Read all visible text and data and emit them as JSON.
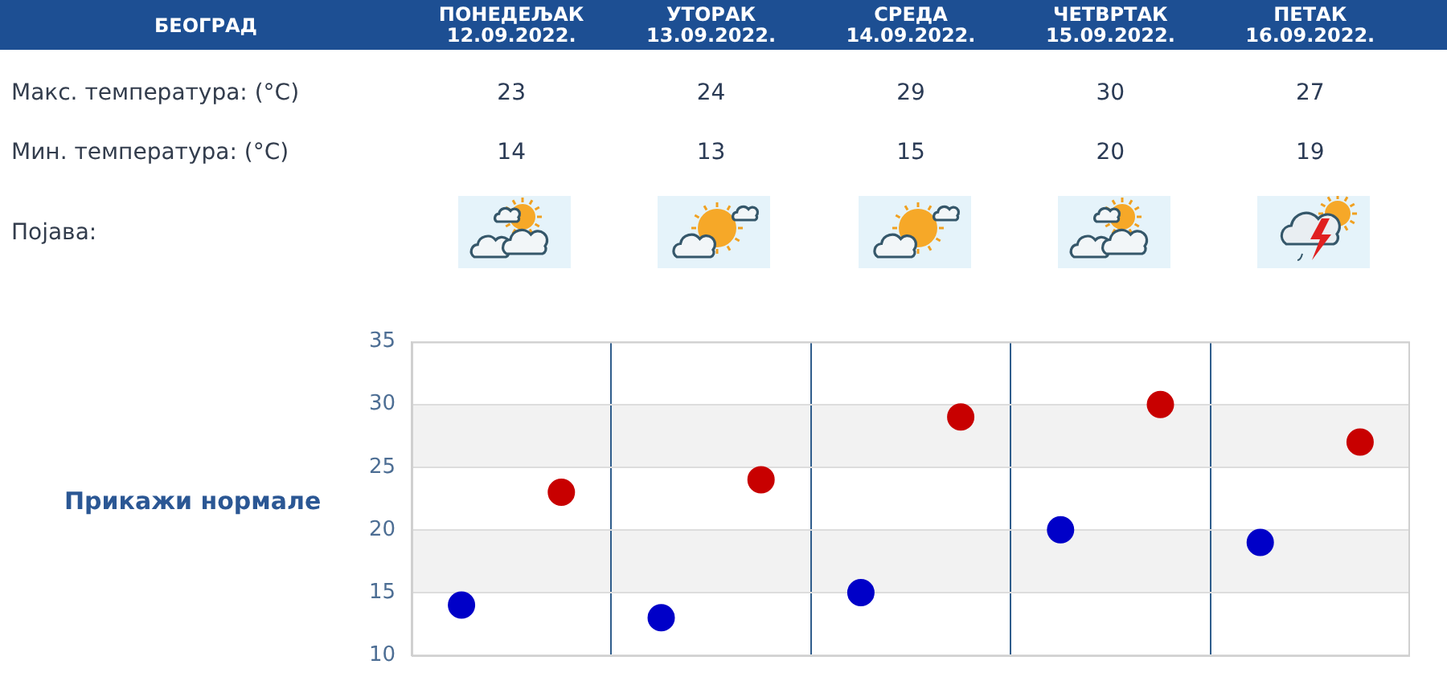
{
  "chart_data": {
    "type": "scatter",
    "title": "БЕОГРАД",
    "categories": [
      null,
      null,
      null,
      null,
      null
    ],
    "series": [
      {
        "color": "#c80000",
        "values": [
          23,
          24,
          29,
          30,
          27
        ]
      },
      {
        "color": "#0000c8",
        "values": [
          14,
          13,
          15,
          20,
          19
        ]
      }
    ],
    "ylim": [
      10,
      35
    ],
    "yticks": [
      10,
      15,
      20,
      25,
      30,
      35
    ],
    "grid": true,
    "legend": false,
    "marker": "circle",
    "data_labels": true,
    "tick_labels": "y",
    "bands": [
      {
        "axis": "y",
        "from": 15,
        "to": 20,
        "color": "#f2f2f2"
      },
      {
        "axis": "y",
        "from": 25,
        "to": 30,
        "color": "#f2f2f2"
      }
    ],
    "annotations": [
      "ПОНЕДЕЉАК 12.09.2022.",
      "УТОРАК 13.09.2022.",
      "СРЕДА 14.09.2022.",
      "ЧЕТВРТАК 15.09.2022.",
      "ПЕТАК 16.09.2022.",
      "Макс. температура: (°C)",
      "Мин. температура: (°C)",
      "Појава:",
      "Прикажи нормале"
    ]
  }
}
